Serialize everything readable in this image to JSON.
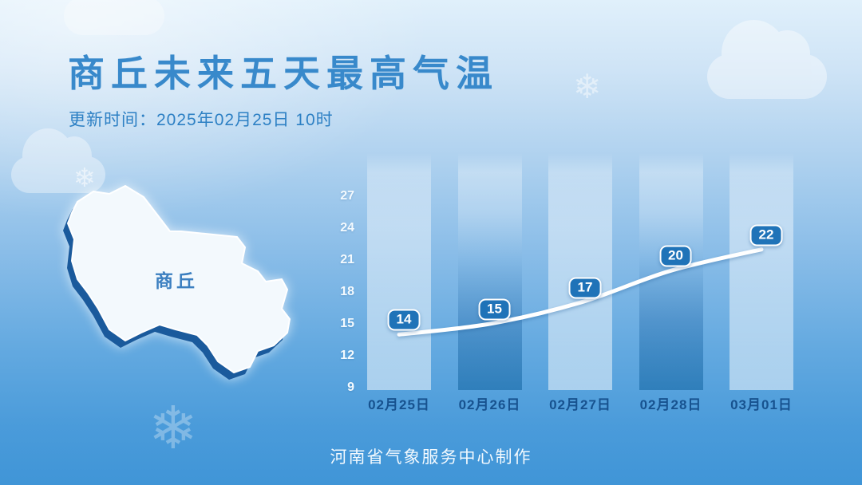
{
  "header": {
    "title": "商丘未来五天最高气温",
    "update_time": "更新时间：2025年02月25日 10时"
  },
  "map": {
    "region_label": "商丘"
  },
  "footer": {
    "credit": "河南省气象服务中心制作"
  },
  "icons": {
    "snowflake": "❄",
    "cloud": "cloud-shape"
  },
  "colors": {
    "title": "#3889cb",
    "subtitle": "#2d80c4",
    "axis_labels": "#f4fafe",
    "date_labels": "#17528f",
    "badge_fill": "#1f73b8",
    "badge_border": "#ffffff",
    "trend_line": "#ffffff",
    "map_fill": "#f3f9fd",
    "map_shadow": "#1a5a9c",
    "background_top": "#dcedfa",
    "background_bottom": "#4095d7"
  },
  "chart_data": {
    "type": "line",
    "title": "商丘未来五天最高气温",
    "categories": [
      "02月25日",
      "02月26日",
      "02月27日",
      "02月28日",
      "03月01日"
    ],
    "values": [
      14,
      15,
      17,
      20,
      22
    ],
    "yticks": [
      27,
      24,
      21,
      18,
      15,
      12,
      9
    ],
    "ylim": [
      9,
      27
    ],
    "grid": false,
    "legend": false,
    "xlabel": "",
    "ylabel": "",
    "style_notes": "white smooth trend line with value badges over alternating light/dark backdrop columns"
  }
}
